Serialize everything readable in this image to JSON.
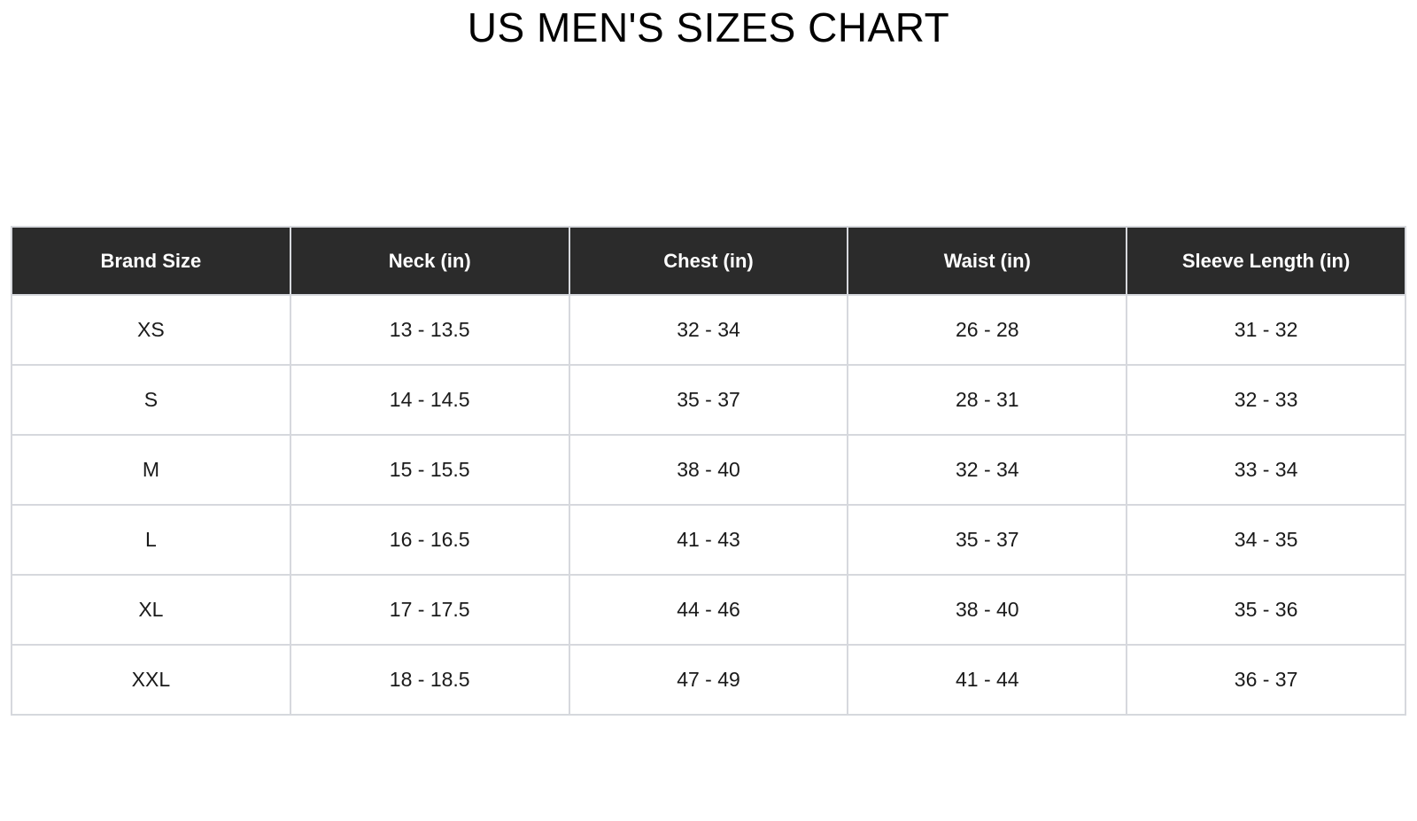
{
  "title": "US MEN'S SIZES CHART",
  "colors": {
    "header_bg": "#2b2b2b",
    "header_text": "#ffffff",
    "body_text": "#1a1a1a",
    "border": "#d6d8dd",
    "background": "#ffffff"
  },
  "table": {
    "headers": [
      "Brand Size",
      "Neck (in)",
      "Chest (in)",
      "Waist (in)",
      "Sleeve Length (in)"
    ],
    "rows": [
      [
        "XS",
        "13 - 13.5",
        "32 - 34",
        "26 - 28",
        "31 - 32"
      ],
      [
        "S",
        "14 - 14.5",
        "35 - 37",
        "28 - 31",
        "32 - 33"
      ],
      [
        "M",
        "15 - 15.5",
        "38 - 40",
        "32 - 34",
        "33 - 34"
      ],
      [
        "L",
        "16 - 16.5",
        "41 - 43",
        "35 - 37",
        "34 - 35"
      ],
      [
        "XL",
        "17 - 17.5",
        "44 - 46",
        "38 - 40",
        "35 - 36"
      ],
      [
        "XXL",
        "18 - 18.5",
        "47 - 49",
        "41 - 44",
        "36 - 37"
      ]
    ]
  },
  "chart_data": {
    "type": "table",
    "title": "US MEN'S SIZES CHART",
    "columns": [
      "Brand Size",
      "Neck (in)",
      "Chest (in)",
      "Waist (in)",
      "Sleeve Length (in)"
    ],
    "rows": [
      {
        "brand_size": "XS",
        "neck_in": "13 - 13.5",
        "chest_in": "32 - 34",
        "waist_in": "26 - 28",
        "sleeve_length_in": "31 - 32"
      },
      {
        "brand_size": "S",
        "neck_in": "14 - 14.5",
        "chest_in": "35 - 37",
        "waist_in": "28 - 31",
        "sleeve_length_in": "32 - 33"
      },
      {
        "brand_size": "M",
        "neck_in": "15 - 15.5",
        "chest_in": "38 - 40",
        "waist_in": "32 - 34",
        "sleeve_length_in": "33 - 34"
      },
      {
        "brand_size": "L",
        "neck_in": "16 - 16.5",
        "chest_in": "41 - 43",
        "waist_in": "35 - 37",
        "sleeve_length_in": "34 - 35"
      },
      {
        "brand_size": "XL",
        "neck_in": "17 - 17.5",
        "chest_in": "44 - 46",
        "waist_in": "38 - 40",
        "sleeve_length_in": "35 - 36"
      },
      {
        "brand_size": "XXL",
        "neck_in": "18 - 18.5",
        "chest_in": "47 - 49",
        "waist_in": "41 - 44",
        "sleeve_length_in": "36 - 37"
      }
    ],
    "layout": {
      "header_style": "dark",
      "grid": true,
      "text_align": "center"
    }
  }
}
